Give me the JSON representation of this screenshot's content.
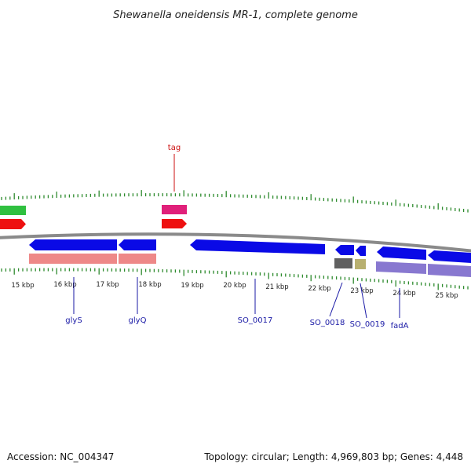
{
  "title": "Shewanella oneidensis MR-1, complete genome",
  "footer": {
    "accession": "Accession: NC_004347",
    "summary": "Topology: circular; Length: 4,969,803 bp; Genes: 4,448"
  },
  "colors": {
    "backbone": "#8a8a8a",
    "ticks": "#2e8b2e",
    "gene_blue": "#0a0ae6",
    "gene_label_blue": "#1a1aa6",
    "rna_red": "#ee1010",
    "trna_pink": "#e0207a",
    "green": "#30c040",
    "salmon": "#ee8888",
    "slate": "#8878d0",
    "gray": "#606060",
    "olive": "#b8b070",
    "tag_red": "#cc1111"
  },
  "scale": {
    "unit": "kbp",
    "labels": [
      "15 kbp",
      "16 kbp",
      "17 kbp",
      "18 kbp",
      "19 kbp",
      "20 kbp",
      "21 kbp",
      "22 kbp",
      "23 kbp",
      "24 kbp",
      "25 kbp"
    ]
  },
  "features": {
    "left_green": {
      "type": "misc",
      "color": "green"
    },
    "left_red": {
      "type": "rRNA",
      "color": "rna_red"
    },
    "tag_pink": {
      "type": "gene",
      "color": "trna_pink"
    },
    "tag_red": {
      "type": "tRNA",
      "color": "rna_red"
    },
    "glyS_gene": {
      "type": "CDS",
      "color": "gene_blue"
    },
    "glyQ_gene": {
      "type": "CDS",
      "color": "gene_blue"
    },
    "SO_0017_gene": {
      "type": "CDS",
      "color": "gene_blue"
    },
    "SO_0018_gene": {
      "type": "CDS",
      "color": "gene_blue"
    },
    "SO_0019_gene": {
      "type": "CDS",
      "color": "gene_blue"
    },
    "fadA_gene": {
      "type": "CDS",
      "color": "gene_blue"
    },
    "right_gene": {
      "type": "CDS",
      "color": "gene_blue"
    }
  },
  "gene_labels": {
    "tag": "tag",
    "glyS": "glyS",
    "glyQ": "glyQ",
    "SO_0017": "SO_0017",
    "SO_0018": "SO_0018",
    "SO_0019": "SO_0019",
    "fadA": "fadA"
  }
}
